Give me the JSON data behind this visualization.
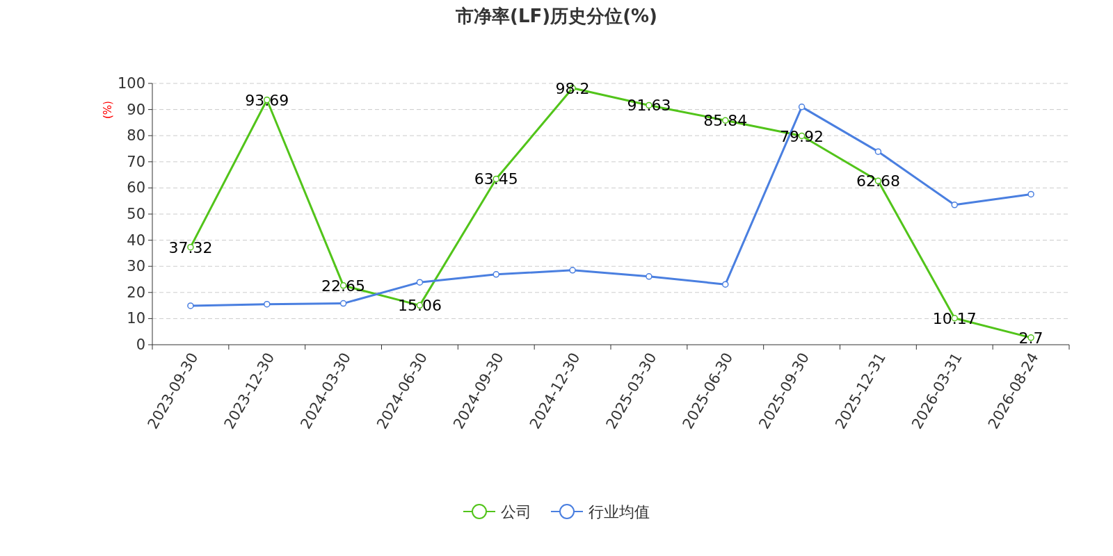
{
  "chart_data": {
    "type": "line",
    "title": "市净率(LF)历史分位(%)",
    "ylabel": "(%)",
    "categories": [
      "2023-09-30",
      "2023-12-30",
      "2024-03-30",
      "2024-06-30",
      "2024-09-30",
      "2024-12-30",
      "2025-03-30",
      "2025-06-30",
      "2025-09-30",
      "2025-12-31",
      "2026-03-31",
      "2026-08-24"
    ],
    "series": [
      {
        "name": "公司",
        "color": "#52c41a",
        "values": [
          37.32,
          93.69,
          22.65,
          15.06,
          63.45,
          98.2,
          91.63,
          85.84,
          79.92,
          62.68,
          10.17,
          2.7
        ],
        "value_labels": [
          "37.32",
          "93.69",
          "22.65",
          "15.06",
          "63.45",
          "98.2",
          "91.63",
          "85.84",
          "79.92",
          "62.68",
          "10.17",
          "2.7"
        ]
      },
      {
        "name": "行业均值",
        "color": "#4a7fe0",
        "values": [
          14.9,
          15.5,
          15.8,
          23.9,
          26.9,
          28.5,
          26.1,
          23.1,
          91.0,
          73.9,
          53.5,
          57.6
        ]
      }
    ],
    "ylim": [
      0,
      100
    ],
    "yticks": [
      0,
      10,
      20,
      30,
      40,
      50,
      60,
      70,
      80,
      90,
      100
    ],
    "grid": "y",
    "legend": "bottom",
    "marker": "circle",
    "line_style": "solid"
  }
}
